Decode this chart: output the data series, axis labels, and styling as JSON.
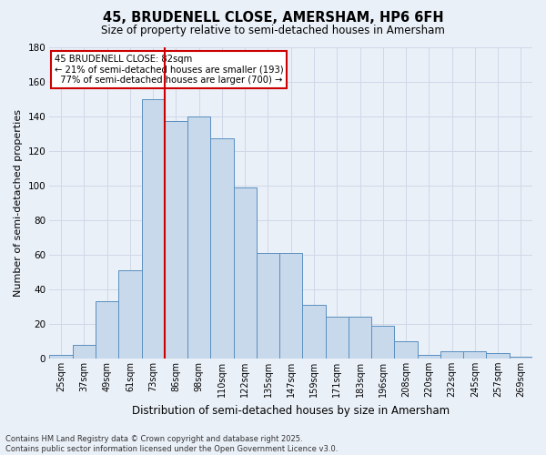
{
  "title": "45, BRUDENELL CLOSE, AMERSHAM, HP6 6FH",
  "subtitle": "Size of property relative to semi-detached houses in Amersham",
  "xlabel": "Distribution of semi-detached houses by size in Amersham",
  "ylabel": "Number of semi-detached properties",
  "bar_color": "#c8d9ec",
  "bar_edge_color": "#5a8fc0",
  "categories": [
    "25sqm",
    "37sqm",
    "49sqm",
    "61sqm",
    "73sqm",
    "86sqm",
    "98sqm",
    "110sqm",
    "122sqm",
    "135sqm",
    "147sqm",
    "159sqm",
    "171sqm",
    "183sqm",
    "196sqm",
    "208sqm",
    "220sqm",
    "232sqm",
    "245sqm",
    "257sqm",
    "269sqm"
  ],
  "values": [
    2,
    8,
    33,
    51,
    150,
    137,
    140,
    127,
    99,
    61,
    61,
    31,
    24,
    24,
    19,
    10,
    2,
    4,
    4,
    3,
    1
  ],
  "ylim": [
    0,
    180
  ],
  "yticks": [
    0,
    20,
    40,
    60,
    80,
    100,
    120,
    140,
    160,
    180
  ],
  "property_line_x": 4.5,
  "property_sqm": 82,
  "pct_smaller": 21,
  "count_smaller": 193,
  "pct_larger": 77,
  "count_larger": 700,
  "annotation_box_color": "#ffffff",
  "annotation_box_edge": "#cc0000",
  "red_line_color": "#cc0000",
  "grid_color": "#d0d8e8",
  "background_color": "#eaf0f8",
  "footer_text": "Contains HM Land Registry data © Crown copyright and database right 2025.\nContains public sector information licensed under the Open Government Licence v3.0."
}
